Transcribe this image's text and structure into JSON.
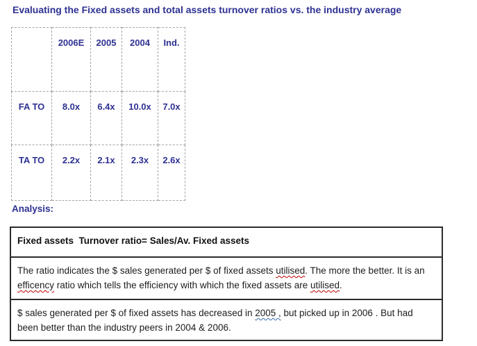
{
  "page": {
    "title": "Evaluating the Fixed assets and total assets turnover ratios vs. the industry average",
    "analysis_label": "Analysis:"
  },
  "colors": {
    "heading_navy": "#2e3192",
    "body_text": "#1c1c1c",
    "table_dashed_border": "#a3a3a3",
    "box_border": "#2b2b2b",
    "spellcheck_red": "#c00000",
    "grammar_blue": "#3a6cb0",
    "background": "#ffffff"
  },
  "chart_data": {
    "type": "table",
    "title": "Fixed assets and total assets turnover ratios vs. industry average",
    "columns": [
      "",
      "2006E",
      "2005",
      "2004",
      "Ind."
    ],
    "rows": [
      {
        "label": "FA TO",
        "values": [
          "8.0x",
          "6.4x",
          "10.0x",
          "7.0x"
        ]
      },
      {
        "label": "TA TO",
        "values": [
          "2.2x",
          "2.1x",
          "2.3x",
          "2.6x"
        ]
      }
    ]
  },
  "table": {
    "columns": [
      "",
      "2006E",
      "2005",
      "2004",
      "Ind."
    ],
    "rows": [
      {
        "label": "FA TO",
        "values": [
          "8.0x",
          "6.4x",
          "10.0x",
          "7.0x"
        ]
      },
      {
        "label": "TA TO",
        "values": [
          "2.2x",
          "2.1x",
          "2.3x",
          "2.6x"
        ]
      }
    ]
  },
  "analysis_box": {
    "heading": "Fixed assets  Turnover ratio= Sales/Av. Fixed assets",
    "paragraphs": [
      {
        "name": "ratio-explanation",
        "segments": [
          {
            "t": "The ratio indicates the $ sales generated per $ of fixed assets "
          },
          {
            "t": "utilised",
            "mark": "spell"
          },
          {
            "t": ". The more the better. It is an "
          },
          {
            "t": "efficency",
            "mark": "spell"
          },
          {
            "t": " ratio which tells the efficiency with which the fixed assets are "
          },
          {
            "t": "utilised",
            "mark": "spell"
          },
          {
            "t": "."
          }
        ]
      },
      {
        "name": "trend-comment",
        "segments": [
          {
            "t": "$ sales generated per $ of fixed assets has decreased in "
          },
          {
            "t": "2005 ,",
            "mark": "grammar"
          },
          {
            "t": " but picked up in 2006 . But had been better than the industry peers in 2004 & 2006."
          }
        ]
      }
    ]
  }
}
